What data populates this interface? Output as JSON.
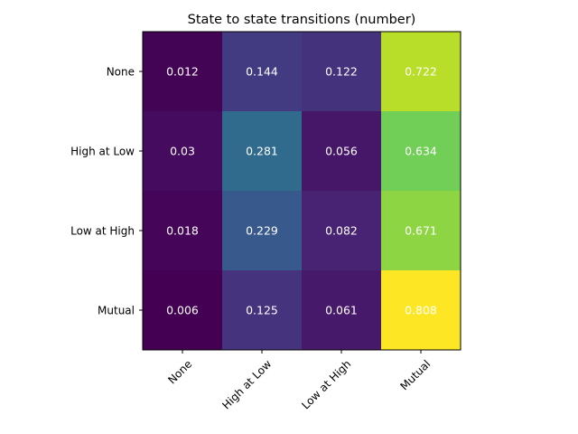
{
  "chart_data": {
    "type": "heatmap",
    "title": "State to state transitions (number)",
    "xlabel": "",
    "ylabel": "",
    "x_categories": [
      "None",
      "High at Low",
      "Low at High",
      "Mutual"
    ],
    "y_categories": [
      "None",
      "High at Low",
      "Low at High",
      "Mutual"
    ],
    "values": [
      [
        0.012,
        0.144,
        0.122,
        0.722
      ],
      [
        0.03,
        0.281,
        0.056,
        0.634
      ],
      [
        0.018,
        0.229,
        0.082,
        0.671
      ],
      [
        0.006,
        0.125,
        0.061,
        0.808
      ]
    ],
    "labels": [
      [
        "0.012",
        "0.144",
        "0.122",
        "0.722"
      ],
      [
        "0.03",
        "0.281",
        "0.056",
        "0.634"
      ],
      [
        "0.018",
        "0.229",
        "0.082",
        "0.671"
      ],
      [
        "0.006",
        "0.125",
        "0.061",
        "0.808"
      ]
    ],
    "colormap": "viridis",
    "annotation_color": "#ffffff",
    "x_tick_rotation_deg": 45,
    "grid": false,
    "legend": "none",
    "colorbar": false
  }
}
